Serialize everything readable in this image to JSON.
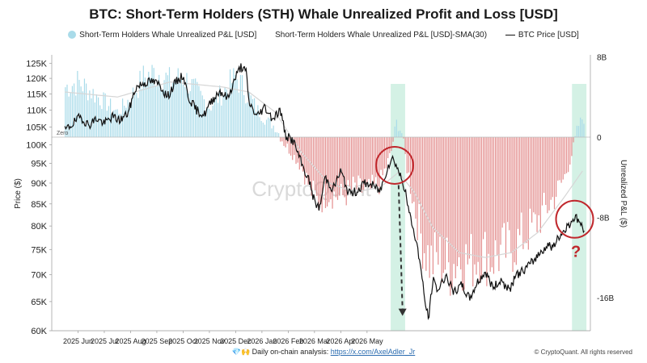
{
  "chart_data": {
    "type": "bar",
    "title": "BTC: Short-Term Holders (STH) Whale Unrealized Profit and Loss [USD]",
    "ylabel_left": "Price ($)",
    "ylabel_right": "Unrealized P&L ($)",
    "legend": {
      "bars": "Short-Term Holders Whale Unrealized P&L [USD]",
      "sma": "Short-Term Holders Whale Unrealized P&L [USD]-SMA(30)",
      "price": "BTC Price [USD]",
      "placement": "top"
    },
    "price_axis": {
      "scale": "log",
      "ticks": [
        "125K",
        "120K",
        "115K",
        "110K",
        "105K",
        "100K",
        "95K",
        "90K",
        "85K",
        "80K",
        "75K",
        "70K",
        "65K",
        "60K"
      ],
      "values": [
        125000,
        120000,
        115000,
        110000,
        105000,
        100000,
        95000,
        90000,
        85000,
        80000,
        75000,
        70000,
        65000,
        60000
      ]
    },
    "pnl_axis": {
      "ticks": [
        "8B",
        "0",
        "-8B",
        "-16B"
      ],
      "values": [
        8,
        0,
        -8,
        -16
      ],
      "unit": "B USD"
    },
    "x_axis": {
      "ticks": [
        "2025 Jun",
        "2025 Jul",
        "2025 Aug",
        "2025 Sep",
        "2025 Oct",
        "2025 Nov",
        "2025 Dec",
        "2026 Jan",
        "2026 Feb",
        "2026 Mar",
        "2026 Apr",
        "2026 May"
      ]
    },
    "zero_label": "Zero",
    "colors": {
      "positive": "#a9dbe9",
      "negative": "#e38d8d",
      "price": "#111111",
      "sma": "#d6d6d6",
      "highlight": "#cdeee0",
      "circle": "#c0282d",
      "question": "#c0282d"
    },
    "price_series": [
      {
        "m": 0.0,
        "v": 104000
      },
      {
        "m": 0.3,
        "v": 106000
      },
      {
        "m": 0.6,
        "v": 108000
      },
      {
        "m": 0.9,
        "v": 105500
      },
      {
        "m": 1.2,
        "v": 107500
      },
      {
        "m": 1.5,
        "v": 106000
      },
      {
        "m": 1.8,
        "v": 108000
      },
      {
        "m": 2.1,
        "v": 107000
      },
      {
        "m": 2.4,
        "v": 109000
      },
      {
        "m": 2.7,
        "v": 117000
      },
      {
        "m": 3.0,
        "v": 118500
      },
      {
        "m": 3.3,
        "v": 119000
      },
      {
        "m": 3.6,
        "v": 118000
      },
      {
        "m": 3.9,
        "v": 114000
      },
      {
        "m": 4.2,
        "v": 118500
      },
      {
        "m": 4.5,
        "v": 121000
      },
      {
        "m": 4.7,
        "v": 114000
      },
      {
        "m": 5.0,
        "v": 110000
      },
      {
        "m": 5.3,
        "v": 108500
      },
      {
        "m": 5.6,
        "v": 113000
      },
      {
        "m": 5.9,
        "v": 116000
      },
      {
        "m": 6.2,
        "v": 113500
      },
      {
        "m": 6.5,
        "v": 120500
      },
      {
        "m": 6.7,
        "v": 124000
      },
      {
        "m": 6.9,
        "v": 122000
      },
      {
        "m": 7.0,
        "v": 112500
      },
      {
        "m": 7.3,
        "v": 108000
      },
      {
        "m": 7.6,
        "v": 111000
      },
      {
        "m": 7.9,
        "v": 107500
      },
      {
        "m": 8.2,
        "v": 110000
      },
      {
        "m": 8.4,
        "v": 102500
      },
      {
        "m": 8.7,
        "v": 101000
      },
      {
        "m": 9.0,
        "v": 95000
      },
      {
        "m": 9.3,
        "v": 90500
      },
      {
        "m": 9.5,
        "v": 85500
      },
      {
        "m": 9.7,
        "v": 84000
      },
      {
        "m": 9.9,
        "v": 91500
      },
      {
        "m": 10.2,
        "v": 88500
      },
      {
        "m": 10.5,
        "v": 93000
      },
      {
        "m": 10.8,
        "v": 87500
      },
      {
        "m": 11.1,
        "v": 88000
      },
      {
        "m": 11.4,
        "v": 90000
      },
      {
        "m": 11.7,
        "v": 89500
      },
      {
        "m": 12.0,
        "v": 88000
      },
      {
        "m": 12.3,
        "v": 94500
      },
      {
        "m": 12.5,
        "v": 96500
      },
      {
        "m": 12.7,
        "v": 93000
      },
      {
        "m": 12.9,
        "v": 89500
      },
      {
        "m": 13.1,
        "v": 83000
      },
      {
        "m": 13.3,
        "v": 78500
      },
      {
        "m": 13.5,
        "v": 73000
      },
      {
        "m": 13.7,
        "v": 65000
      },
      {
        "m": 13.85,
        "v": 62000
      },
      {
        "m": 14.0,
        "v": 69000
      },
      {
        "m": 14.2,
        "v": 67000
      },
      {
        "m": 14.5,
        "v": 70000
      },
      {
        "m": 14.8,
        "v": 66500
      },
      {
        "m": 15.1,
        "v": 68000
      },
      {
        "m": 15.4,
        "v": 65500
      },
      {
        "m": 15.7,
        "v": 68500
      },
      {
        "m": 16.0,
        "v": 70500
      },
      {
        "m": 16.3,
        "v": 67500
      },
      {
        "m": 16.6,
        "v": 69000
      },
      {
        "m": 16.9,
        "v": 67000
      },
      {
        "m": 17.2,
        "v": 70000
      },
      {
        "m": 17.5,
        "v": 71000
      },
      {
        "m": 17.8,
        "v": 72500
      },
      {
        "m": 18.1,
        "v": 74500
      },
      {
        "m": 18.4,
        "v": 76000
      },
      {
        "m": 18.6,
        "v": 75500
      },
      {
        "m": 18.8,
        "v": 77500
      },
      {
        "m": 19.0,
        "v": 79000
      },
      {
        "m": 19.2,
        "v": 80500
      },
      {
        "m": 19.4,
        "v": 82000
      },
      {
        "m": 19.6,
        "v": 81000
      },
      {
        "m": 19.8,
        "v": 78000
      }
    ],
    "pnl_series": [
      {
        "m": 0.0,
        "v": 5.0
      },
      {
        "m": 0.5,
        "v": 5.5
      },
      {
        "m": 1.0,
        "v": 4.5
      },
      {
        "m": 1.5,
        "v": 3.5
      },
      {
        "m": 2.0,
        "v": 2.5
      },
      {
        "m": 2.5,
        "v": 4.0
      },
      {
        "m": 3.0,
        "v": 6.0
      },
      {
        "m": 3.5,
        "v": 6.5
      },
      {
        "m": 4.0,
        "v": 5.5
      },
      {
        "m": 4.5,
        "v": 6.0
      },
      {
        "m": 5.0,
        "v": 4.5
      },
      {
        "m": 5.5,
        "v": 3.0
      },
      {
        "m": 6.0,
        "v": 4.5
      },
      {
        "m": 6.5,
        "v": 6.0
      },
      {
        "m": 7.0,
        "v": 4.0
      },
      {
        "m": 7.5,
        "v": 2.0
      },
      {
        "m": 8.0,
        "v": 1.0
      },
      {
        "m": 8.3,
        "v": -0.5
      },
      {
        "m": 8.6,
        "v": -1.5
      },
      {
        "m": 9.0,
        "v": -3.0
      },
      {
        "m": 9.3,
        "v": -5.0
      },
      {
        "m": 9.6,
        "v": -6.5
      },
      {
        "m": 10.0,
        "v": -5.5
      },
      {
        "m": 10.5,
        "v": -6.0
      },
      {
        "m": 11.0,
        "v": -5.0
      },
      {
        "m": 11.5,
        "v": -5.5
      },
      {
        "m": 12.0,
        "v": -4.5
      },
      {
        "m": 12.4,
        "v": -1.5
      },
      {
        "m": 12.6,
        "v": 1.5
      },
      {
        "m": 12.8,
        "v": 0.5
      },
      {
        "m": 13.0,
        "v": -3.0
      },
      {
        "m": 13.3,
        "v": -7.0
      },
      {
        "m": 13.6,
        "v": -10.5
      },
      {
        "m": 13.9,
        "v": -12.5
      },
      {
        "m": 14.2,
        "v": -12.0
      },
      {
        "m": 14.6,
        "v": -13.0
      },
      {
        "m": 15.0,
        "v": -12.0
      },
      {
        "m": 15.4,
        "v": -12.5
      },
      {
        "m": 15.8,
        "v": -11.5
      },
      {
        "m": 16.2,
        "v": -12.0
      },
      {
        "m": 16.6,
        "v": -11.5
      },
      {
        "m": 17.0,
        "v": -11.0
      },
      {
        "m": 17.4,
        "v": -10.0
      },
      {
        "m": 17.8,
        "v": -9.0
      },
      {
        "m": 18.2,
        "v": -7.5
      },
      {
        "m": 18.6,
        "v": -6.0
      },
      {
        "m": 19.0,
        "v": -4.0
      },
      {
        "m": 19.3,
        "v": -1.5
      },
      {
        "m": 19.5,
        "v": 1.0
      },
      {
        "m": 19.7,
        "v": 2.0
      },
      {
        "m": 19.8,
        "v": 1.5
      }
    ],
    "sma_series": [
      {
        "m": 0.0,
        "v": 4.5
      },
      {
        "m": 2.0,
        "v": 4.0
      },
      {
        "m": 4.0,
        "v": 5.5
      },
      {
        "m": 6.0,
        "v": 5.0
      },
      {
        "m": 7.0,
        "v": 4.5
      },
      {
        "m": 8.0,
        "v": 2.5
      },
      {
        "m": 9.0,
        "v": -1.5
      },
      {
        "m": 10.0,
        "v": -4.5
      },
      {
        "m": 11.0,
        "v": -5.5
      },
      {
        "m": 12.0,
        "v": -5.0
      },
      {
        "m": 12.7,
        "v": -3.5
      },
      {
        "m": 13.3,
        "v": -5.5
      },
      {
        "m": 14.0,
        "v": -9.0
      },
      {
        "m": 15.0,
        "v": -11.5
      },
      {
        "m": 16.0,
        "v": -12.0
      },
      {
        "m": 17.0,
        "v": -11.5
      },
      {
        "m": 18.0,
        "v": -9.5
      },
      {
        "m": 19.0,
        "v": -6.0
      },
      {
        "m": 19.8,
        "v": -3.0
      }
    ],
    "highlights": [
      {
        "from": 12.4,
        "to": 12.95
      },
      {
        "from": 19.3,
        "to": 19.85
      }
    ],
    "circles": [
      {
        "m": 12.55,
        "price": 94500
      },
      {
        "m": 19.4,
        "price": 81500
      }
    ],
    "arrow": {
      "from_m": 12.7,
      "from_price": 89500,
      "to_m": 12.85,
      "to_price": 62500
    },
    "question_mark": "?"
  },
  "footer": {
    "prefix": "Daily on-chain analysis: ",
    "link": "https://x.com/AxelAdler_Jr",
    "emojis": "💎🙌"
  },
  "copyright": "© CryptoQuant. All rights reserved",
  "watermark": "CryptoQuant"
}
